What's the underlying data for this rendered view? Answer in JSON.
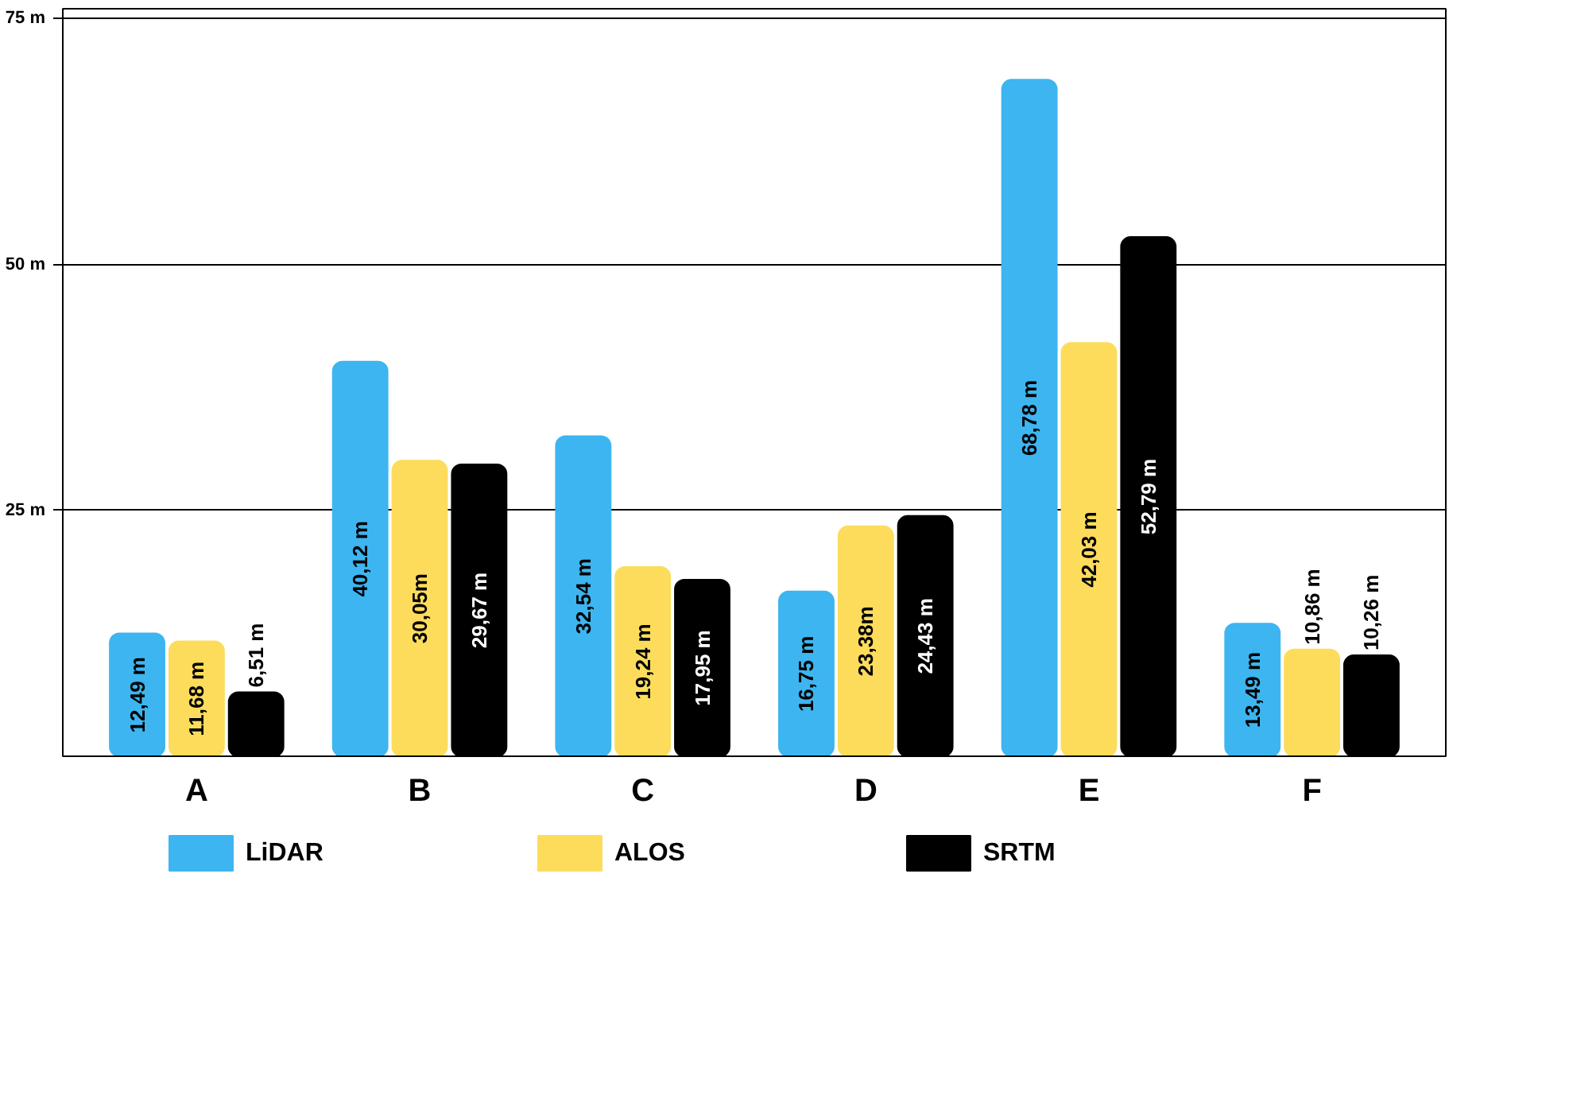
{
  "chart_data": {
    "type": "bar",
    "categories": [
      "A",
      "B",
      "C",
      "D",
      "E",
      "F"
    ],
    "series": [
      {
        "name": "LiDAR",
        "color": "#3db5f0",
        "values": [
          12.49,
          40.12,
          32.54,
          16.75,
          68.78,
          13.49
        ],
        "value_labels": [
          "12,49 m",
          "40,12 m",
          "32,54 m",
          "16,75 m",
          "68,78 m",
          "13,49 m"
        ]
      },
      {
        "name": "ALOS",
        "color": "#fddc5c",
        "values": [
          11.68,
          30.05,
          19.24,
          23.38,
          42.03,
          10.86
        ],
        "value_labels": [
          "11,68 m",
          "30,05m",
          "19,24 m",
          "23,38m",
          "42,03 m",
          "10,86 m"
        ]
      },
      {
        "name": "SRTM",
        "color": "#000000",
        "values": [
          6.51,
          29.67,
          17.95,
          24.43,
          52.79,
          10.26
        ],
        "value_labels": [
          "6,51 m",
          "29,67 m",
          "17,95 m",
          "24,43 m",
          "52,79 m",
          "10,26 m"
        ]
      }
    ],
    "ylim": [
      0,
      76
    ],
    "yticks": [
      {
        "value": 25,
        "label": "25 m"
      },
      {
        "value": 50,
        "label": "50 m"
      },
      {
        "value": 75,
        "label": "75 m"
      }
    ],
    "grid": "y",
    "legend": "bottom"
  }
}
